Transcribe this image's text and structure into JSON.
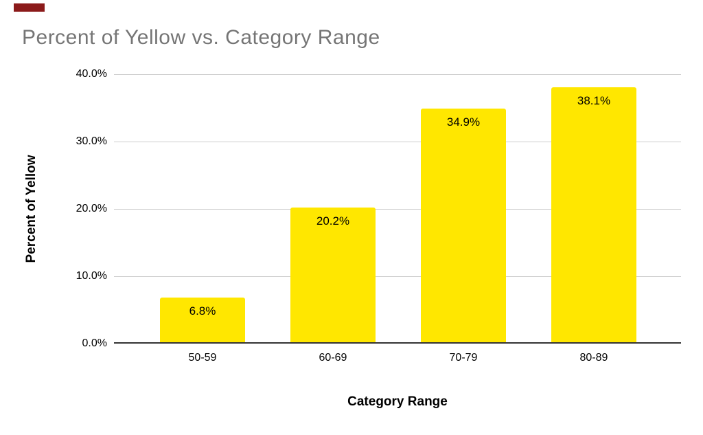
{
  "corner_marker": {
    "color": "#8b1a1a"
  },
  "chart_data": {
    "type": "bar",
    "title": "Percent of Yellow vs. Category Range",
    "xlabel": "Category Range",
    "ylabel": "Percent of Yellow",
    "categories": [
      "50-59",
      "60-69",
      "70-79",
      "80-89"
    ],
    "values": [
      6.8,
      20.2,
      34.9,
      38.1
    ],
    "value_labels": [
      "6.8%",
      "20.2%",
      "34.9%",
      "38.1%"
    ],
    "y_ticks": [
      {
        "label": "40.0%",
        "value": 40
      },
      {
        "label": "30.0%",
        "value": 30
      },
      {
        "label": "20.0%",
        "value": 20
      },
      {
        "label": "10.0%",
        "value": 10
      },
      {
        "label": "0.0%",
        "value": 0
      }
    ],
    "ylim": [
      0,
      40
    ],
    "grid": "horizontal",
    "legend": "none",
    "colors": {
      "bar": "#ffe700",
      "title": "#757575",
      "gridline": "#cccccc",
      "axis_line": "#333333",
      "text": "#000000"
    }
  }
}
